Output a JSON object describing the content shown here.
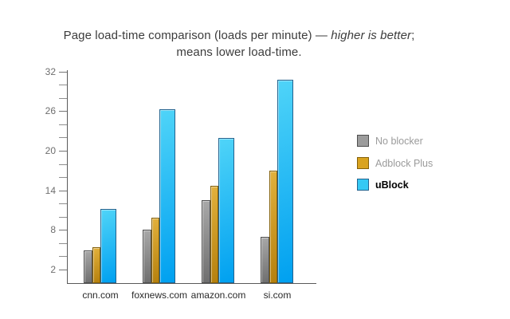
{
  "title": {
    "prefix": "Page load-time comparison (loads per minute) — ",
    "italic": "higher is better",
    "suffix": ";",
    "line2": "means lower load-time."
  },
  "chart_data": {
    "type": "bar",
    "title": "Page load-time comparison (loads per minute) — higher is better; means lower load-time.",
    "categories": [
      "cnn.com",
      "foxnews.com",
      "amazon.com",
      "si.com"
    ],
    "series": [
      {
        "name": "No blocker",
        "values": [
          4.9,
          8.0,
          12.5,
          6.9
        ],
        "color_top": "#a9a9a9",
        "color_bottom": "#6e6e6e",
        "border": "#4f4f4f",
        "swatch": "#9c9c9c",
        "emphasis": false
      },
      {
        "name": "Adblock Plus",
        "values": [
          5.4,
          9.9,
          14.7,
          17.0
        ],
        "color_top": "#e2b13c",
        "color_bottom": "#b5800d",
        "border": "#84600a",
        "swatch": "#d9a31f",
        "emphasis": false
      },
      {
        "name": "uBlock",
        "values": [
          11.2,
          26.3,
          21.9,
          30.8
        ],
        "color_top": "#4fd4f8",
        "color_bottom": "#00a0f0",
        "border": "#23638f",
        "swatch": "#35c9f4",
        "emphasis": true
      }
    ],
    "yaxis": {
      "tick_min": 2,
      "tick_max": 32,
      "tick_step": 2,
      "label_step": 6,
      "tick_labels": [
        "2",
        "8",
        "14",
        "20",
        "26",
        "32"
      ],
      "ylim": [
        0,
        32.5
      ]
    },
    "xlabel": "",
    "ylabel": "",
    "grid": false,
    "legend_position": "right"
  }
}
